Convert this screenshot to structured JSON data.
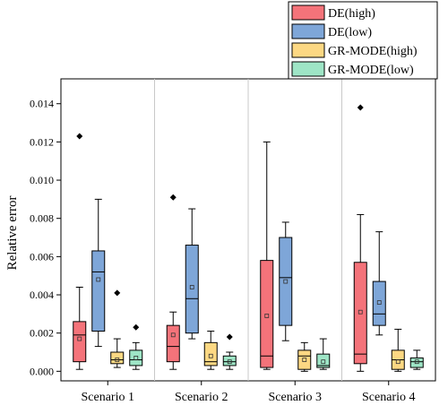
{
  "chart_data": {
    "type": "box",
    "title": "",
    "xlabel": "",
    "ylabel": "Relative error",
    "ylim": [
      -0.0005,
      0.0153
    ],
    "yticks": [
      0.0,
      0.002,
      0.004,
      0.006,
      0.008,
      0.01,
      0.012,
      0.014
    ],
    "ytick_labels": [
      "0.000",
      "0.002",
      "0.004",
      "0.006",
      "0.008",
      "0.010",
      "0.012",
      "0.014"
    ],
    "grid": false,
    "legend_position": "top-right, outside plot",
    "categories": [
      "Scenario 1",
      "Scenario 2",
      "Scenario 3",
      "Scenario 4"
    ],
    "series": [
      {
        "name": "DE(high)",
        "color": "#f4737a",
        "boxes": [
          {
            "min": 0.0001,
            "q1": 0.0005,
            "median": 0.0019,
            "q3": 0.0026,
            "max": 0.0044,
            "mean": 0.0017,
            "outliers": [
              0.0123
            ]
          },
          {
            "min": 0.0001,
            "q1": 0.0005,
            "median": 0.0013,
            "q3": 0.0024,
            "max": 0.0031,
            "mean": 0.0019,
            "outliers": [
              0.0091
            ]
          },
          {
            "min": 0.0001,
            "q1": 0.0002,
            "median": 0.0008,
            "q3": 0.0058,
            "max": 0.012,
            "mean": 0.0029,
            "outliers": []
          },
          {
            "min": 0.0,
            "q1": 0.0004,
            "median": 0.0009,
            "q3": 0.0057,
            "max": 0.0082,
            "mean": 0.0031,
            "outliers": [
              0.0138
            ]
          }
        ]
      },
      {
        "name": "DE(low)",
        "color": "#7ea6d8",
        "boxes": [
          {
            "min": 0.0013,
            "q1": 0.0021,
            "median": 0.0052,
            "q3": 0.0063,
            "max": 0.009,
            "mean": 0.0048,
            "outliers": []
          },
          {
            "min": 0.0017,
            "q1": 0.002,
            "median": 0.0038,
            "q3": 0.0066,
            "max": 0.0085,
            "mean": 0.0044,
            "outliers": []
          },
          {
            "min": 0.0016,
            "q1": 0.0024,
            "median": 0.0049,
            "q3": 0.007,
            "max": 0.0078,
            "mean": 0.0047,
            "outliers": []
          },
          {
            "min": 0.0019,
            "q1": 0.0024,
            "median": 0.003,
            "q3": 0.0047,
            "max": 0.0073,
            "mean": 0.0036,
            "outliers": []
          }
        ]
      },
      {
        "name": "GR-MODE(high)",
        "color": "#fcd883",
        "boxes": [
          {
            "min": 0.0002,
            "q1": 0.0004,
            "median": 0.0006,
            "q3": 0.001,
            "max": 0.0017,
            "mean": 0.0006,
            "outliers": [
              0.0041
            ]
          },
          {
            "min": 0.0001,
            "q1": 0.0003,
            "median": 0.0005,
            "q3": 0.0015,
            "max": 0.0021,
            "mean": 0.0008,
            "outliers": []
          },
          {
            "min": 0.0,
            "q1": 0.0001,
            "median": 0.0008,
            "q3": 0.0011,
            "max": 0.0015,
            "mean": 0.0006,
            "outliers": []
          },
          {
            "min": 0.0,
            "q1": 0.0001,
            "median": 0.0006,
            "q3": 0.0011,
            "max": 0.0022,
            "mean": 0.0005,
            "outliers": []
          }
        ]
      },
      {
        "name": "GR-MODE(low)",
        "color": "#9ee5c6",
        "boxes": [
          {
            "min": 0.0001,
            "q1": 0.0003,
            "median": 0.0006,
            "q3": 0.0011,
            "max": 0.0015,
            "mean": 0.0007,
            "outliers": [
              0.0023
            ]
          },
          {
            "min": 0.0001,
            "q1": 0.0003,
            "median": 0.0005,
            "q3": 0.0008,
            "max": 0.001,
            "mean": 0.0005,
            "outliers": [
              0.0018
            ]
          },
          {
            "min": 0.0001,
            "q1": 0.0002,
            "median": 0.0003,
            "q3": 0.0009,
            "max": 0.0017,
            "mean": 0.0005,
            "outliers": []
          },
          {
            "min": 0.0001,
            "q1": 0.0002,
            "median": 0.0005,
            "q3": 0.0007,
            "max": 0.0011,
            "mean": 0.0005,
            "outliers": []
          }
        ]
      }
    ]
  }
}
